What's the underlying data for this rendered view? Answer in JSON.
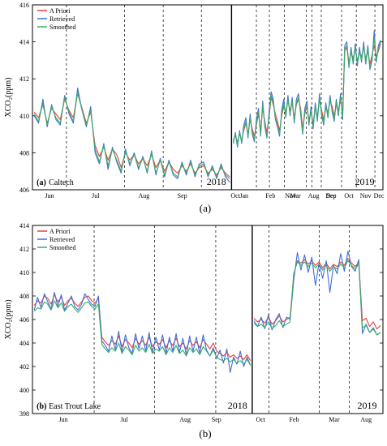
{
  "chart_data": [
    {
      "type": "line",
      "panel_label": "(a)",
      "site": "Caltech",
      "caption": "(a)",
      "ylabel": "XCO₂(ppm)",
      "ylim": [
        406,
        416
      ],
      "yticks": [
        406,
        408,
        410,
        412,
        414,
        416
      ],
      "segments_2018": [
        "Jun",
        "Jul",
        "Aug",
        "Sep",
        "Oct",
        "Nov",
        "Dec"
      ],
      "segments_2019": [
        "Jan",
        "Feb",
        "Mar",
        "Aug",
        "Sep",
        "Oct",
        "Nov",
        "Dec"
      ],
      "year_labels": [
        "2018",
        "2019"
      ],
      "legend": [
        {
          "name": "A Priori",
          "color": "#e8413c"
        },
        {
          "name": "Retrieved",
          "color": "#3f6fd8"
        },
        {
          "name": "Smoothed",
          "color": "#3aaa6a"
        }
      ],
      "series": [
        {
          "name": "A Priori",
          "values": [
            410.2,
            409.9,
            410.6,
            409.6,
            410.4,
            410.1,
            409.8,
            410.9,
            410.3,
            409.9,
            411.2,
            410.4,
            409.6,
            410.2,
            408.4,
            407.8,
            408.3,
            407.6,
            408.2,
            407.9,
            407.2,
            408.0,
            407.6,
            407.9,
            407.4,
            407.7,
            407.3,
            407.9,
            407.2,
            407.6,
            407.0,
            407.5,
            407.1,
            406.9,
            407.3,
            407.0,
            407.4,
            406.9,
            407.2,
            407.3,
            406.9,
            407.1,
            406.8,
            407.2,
            406.9,
            406.7,
            408.7,
            408.9,
            408.6,
            409.0,
            408.7,
            409.2,
            409.6,
            409.0,
            409.8,
            409.3,
            408.9,
            409.5,
            410.1,
            409.2,
            410.4,
            409.7,
            409.1,
            409.9,
            411.0,
            410.6,
            410.1,
            409.7,
            409.2,
            410.0,
            410.5,
            410.2,
            410.8,
            410.3,
            410.7,
            409.9,
            410.6,
            410.9,
            410.4,
            409.3,
            410.1,
            410.5,
            409.8,
            410.2,
            409.6,
            410.4,
            410.0,
            410.9,
            410.3,
            409.8,
            410.4,
            410.2,
            410.8,
            410.5,
            410.0,
            410.6,
            410.3,
            410.9,
            410.0,
            413.5,
            413.7,
            412.9,
            413.4,
            413.1,
            413.6,
            413.0,
            413.4,
            413.2,
            413.7,
            413.1,
            413.5,
            412.8,
            413.3,
            413.8,
            413.2,
            413.5,
            413.9
          ]
        },
        {
          "name": "Retrieved",
          "values": [
            410.0,
            409.6,
            410.9,
            409.4,
            410.6,
            409.8,
            409.5,
            411.1,
            410.1,
            409.6,
            411.5,
            410.3,
            409.4,
            410.5,
            408.0,
            407.4,
            408.5,
            407.1,
            408.3,
            407.5,
            406.9,
            408.2,
            407.3,
            408.0,
            407.1,
            407.8,
            406.9,
            408.1,
            406.8,
            407.7,
            406.7,
            407.6,
            406.8,
            406.6,
            407.5,
            406.8,
            407.6,
            406.7,
            407.4,
            407.5,
            406.7,
            407.3,
            406.6,
            407.4,
            406.7,
            406.4,
            408.5,
            409.1,
            408.3,
            409.2,
            408.5,
            409.5,
            409.9,
            408.8,
            410.1,
            409.0,
            408.6,
            409.8,
            410.4,
            408.9,
            410.8,
            409.4,
            408.8,
            410.2,
            411.3,
            410.9,
            409.8,
            409.4,
            408.9,
            410.3,
            410.9,
            409.9,
            411.1,
            410.0,
            411.0,
            409.6,
            410.9,
            411.2,
            410.1,
            409.0,
            410.4,
            410.8,
            409.5,
            410.5,
            409.3,
            410.7,
            409.7,
            411.2,
            410.0,
            409.5,
            410.7,
            409.9,
            411.1,
            410.2,
            409.7,
            410.9,
            410.0,
            411.2,
            409.8,
            413.8,
            414.0,
            412.6,
            413.7,
            412.8,
            413.9,
            412.7,
            413.7,
            412.9,
            414.0,
            412.8,
            413.8,
            412.5,
            413.0,
            414.6,
            412.9,
            413.8,
            414.1
          ]
        },
        {
          "name": "Smoothed",
          "values": [
            410.1,
            409.7,
            410.7,
            409.5,
            410.5,
            409.9,
            409.6,
            411.0,
            410.2,
            409.7,
            411.3,
            410.3,
            409.5,
            410.3,
            408.2,
            407.5,
            408.4,
            407.3,
            408.2,
            407.6,
            407.0,
            408.1,
            407.4,
            407.9,
            407.2,
            407.7,
            407.0,
            408.0,
            406.9,
            407.6,
            406.8,
            407.5,
            406.9,
            406.7,
            407.4,
            406.9,
            407.5,
            406.8,
            407.3,
            407.4,
            406.8,
            407.2,
            406.7,
            407.3,
            406.8,
            406.6,
            408.6,
            409.0,
            408.4,
            409.1,
            408.6,
            409.3,
            409.7,
            408.9,
            409.9,
            409.1,
            408.7,
            409.6,
            410.2,
            409.0,
            410.6,
            409.5,
            408.9,
            410.0,
            411.1,
            410.7,
            409.9,
            409.5,
            409.0,
            410.1,
            410.7,
            410.0,
            410.9,
            410.1,
            410.8,
            409.7,
            410.7,
            411.0,
            410.2,
            409.1,
            410.2,
            410.6,
            409.6,
            410.3,
            409.4,
            410.5,
            409.8,
            411.0,
            410.1,
            409.6,
            410.5,
            410.0,
            410.9,
            410.3,
            409.8,
            410.7,
            410.1,
            411.0,
            409.9,
            413.6,
            413.8,
            412.7,
            413.5,
            412.9,
            413.7,
            412.8,
            413.5,
            413.0,
            413.8,
            412.9,
            413.6,
            412.6,
            413.1,
            414.2,
            413.0,
            413.6,
            414.0
          ]
        }
      ]
    },
    {
      "type": "line",
      "panel_label": "(b)",
      "site": "East Trout Lake",
      "caption": "(b)",
      "ylabel": "XCO₂(ppm)",
      "ylim": [
        398,
        414
      ],
      "yticks": [
        398,
        400,
        402,
        404,
        406,
        408,
        410,
        412,
        414
      ],
      "segments_2018": [
        "Jun",
        "Jul",
        "Aug",
        "Sep"
      ],
      "segments_2019": [
        "Oct",
        "Feb",
        "Mar",
        "Aug"
      ],
      "year_labels": [
        "2018",
        "2019"
      ],
      "legend": [
        {
          "name": "A Priori",
          "color": "#e8413c"
        },
        {
          "name": "Retrieved",
          "color": "#3f6fd8"
        },
        {
          "name": "Smoothed",
          "color": "#3aaa6a"
        }
      ],
      "series": [
        {
          "name": "A Priori",
          "values": [
            407.2,
            407.6,
            407.4,
            408.0,
            407.8,
            407.3,
            408.1,
            407.5,
            407.9,
            407.2,
            407.6,
            407.8,
            407.4,
            407.1,
            407.5,
            407.9,
            408.0,
            407.6,
            407.4,
            407.8,
            404.5,
            404.1,
            403.8,
            404.2,
            403.9,
            404.6,
            403.7,
            404.3,
            404.0,
            403.6,
            404.4,
            403.9,
            404.2,
            403.8,
            404.5,
            403.7,
            404.1,
            403.9,
            404.3,
            403.6,
            404.2,
            403.8,
            404.4,
            403.7,
            404.0,
            403.5,
            404.2,
            403.8,
            404.1,
            403.6,
            404.3,
            403.9,
            403.5,
            404.0,
            403.3,
            403.1,
            402.9,
            403.2,
            402.8,
            403.0,
            402.7,
            402.9,
            402.6,
            403.0,
            402.5,
            406.1,
            405.8,
            406.0,
            405.7,
            406.2,
            405.6,
            405.9,
            406.3,
            405.8,
            406.0,
            406.2,
            409.8,
            411.0,
            410.8,
            411.1,
            410.7,
            411.0,
            410.6,
            410.9,
            410.4,
            410.8,
            410.3,
            410.7,
            410.5,
            410.9,
            410.6,
            411.2,
            410.8,
            410.5,
            410.9,
            405.9,
            406.1,
            405.4,
            405.8,
            405.2,
            405.5
          ]
        },
        {
          "name": "Retrieved",
          "values": [
            406.8,
            407.9,
            407.0,
            408.2,
            407.5,
            406.9,
            408.3,
            407.1,
            408.1,
            406.8,
            407.4,
            408.0,
            407.1,
            406.8,
            407.3,
            408.2,
            407.7,
            407.3,
            407.1,
            408.0,
            404.2,
            403.8,
            403.3,
            404.6,
            403.4,
            405.0,
            403.2,
            404.7,
            403.6,
            403.1,
            404.8,
            403.5,
            404.6,
            403.3,
            404.9,
            403.2,
            404.5,
            403.4,
            404.7,
            403.1,
            404.5,
            403.3,
            404.8,
            403.2,
            404.4,
            403.0,
            404.6,
            403.3,
            404.5,
            403.1,
            404.7,
            403.4,
            402.9,
            403.6,
            402.7,
            403.4,
            402.3,
            403.5,
            401.5,
            402.8,
            402.2,
            403.3,
            402.0,
            402.8,
            402.1,
            405.9,
            405.4,
            406.2,
            405.2,
            406.4,
            405.1,
            406.0,
            406.5,
            405.3,
            406.2,
            406.0,
            409.3,
            411.7,
            410.2,
            411.5,
            410.0,
            411.3,
            408.9,
            410.8,
            409.5,
            411.0,
            408.3,
            410.6,
            409.9,
            411.6,
            410.1,
            411.8,
            410.5,
            410.1,
            411.1,
            404.8,
            405.6,
            404.9,
            405.3,
            404.7,
            404.9
          ]
        },
        {
          "name": "Smoothed",
          "values": [
            406.7,
            407.0,
            406.9,
            407.5,
            407.3,
            406.8,
            407.6,
            407.0,
            407.4,
            406.7,
            407.1,
            407.3,
            406.9,
            406.6,
            407.0,
            407.4,
            407.5,
            407.1,
            406.9,
            407.3,
            403.9,
            403.5,
            403.2,
            403.6,
            403.3,
            404.0,
            403.1,
            403.7,
            403.4,
            403.0,
            403.8,
            403.3,
            403.6,
            403.2,
            403.9,
            403.1,
            403.5,
            403.3,
            403.7,
            403.0,
            403.6,
            403.2,
            403.8,
            403.1,
            403.4,
            402.9,
            403.6,
            403.2,
            403.5,
            403.0,
            403.7,
            403.3,
            402.9,
            403.4,
            402.8,
            402.6,
            402.5,
            402.7,
            402.4,
            402.6,
            402.3,
            402.5,
            402.2,
            402.6,
            402.1,
            405.7,
            405.4,
            405.6,
            405.3,
            405.8,
            405.2,
            405.5,
            405.9,
            405.4,
            405.6,
            405.8,
            409.9,
            410.9,
            410.6,
            410.9,
            410.5,
            410.8,
            410.4,
            410.7,
            410.2,
            410.6,
            410.1,
            410.5,
            410.3,
            410.7,
            410.4,
            411.0,
            410.6,
            410.3,
            410.7,
            405.3,
            405.5,
            404.9,
            405.2,
            404.7,
            404.9
          ]
        }
      ]
    }
  ]
}
